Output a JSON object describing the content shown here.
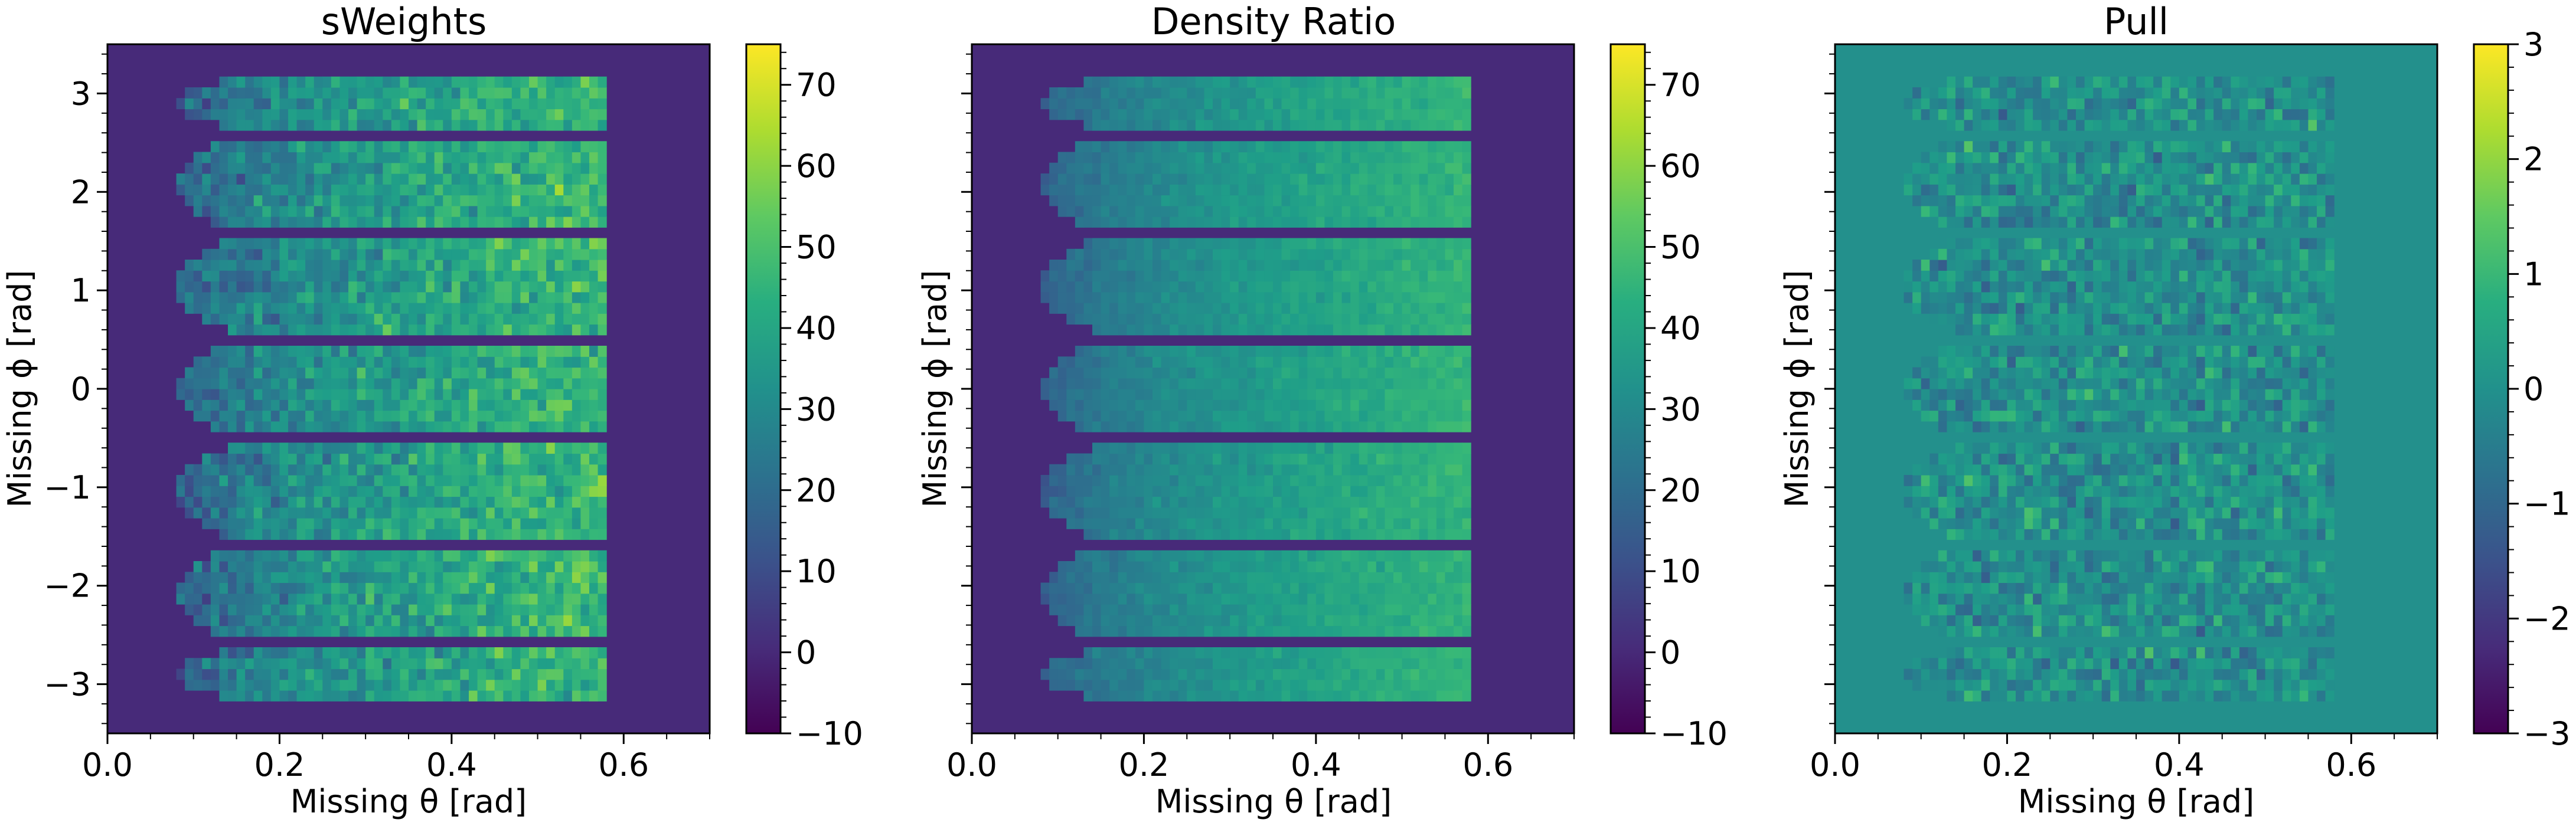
{
  "figure": {
    "panels": [
      {
        "key": "sweights",
        "title": "sWeights",
        "xlabel": "Missing θ [rad]",
        "ylabel": "Missing ϕ [rad]",
        "show_y_ticklabels": true,
        "background_value": 0
      },
      {
        "key": "density_ratio",
        "title": "Density Ratio",
        "xlabel": "Missing θ [rad]",
        "ylabel": "Missing ϕ [rad]",
        "show_y_ticklabels": false,
        "background_value": 0
      },
      {
        "key": "pull",
        "title": "Pull",
        "xlabel": "Missing θ [rad]",
        "ylabel": "Missing ϕ [rad]",
        "show_y_ticklabels": false,
        "background_value": 0
      }
    ]
  },
  "chart_data": [
    {
      "type": "heatmap",
      "title": "sWeights",
      "xlabel": "Missing θ [rad]",
      "ylabel": "Missing ϕ [rad]",
      "xlim": [
        0.0,
        0.7
      ],
      "ylim": [
        -3.5,
        3.5
      ],
      "xticks": [
        "0.0",
        "0.2",
        "0.4",
        "0.6"
      ],
      "yticks": [
        "−3",
        "−2",
        "−1",
        "0",
        "1",
        "2",
        "3"
      ],
      "colorbar": {
        "min": -10,
        "max": 75,
        "ticks": [
          "−10",
          "0",
          "10",
          "20",
          "30",
          "40",
          "50",
          "60",
          "70"
        ],
        "colormap": "viridis"
      },
      "background_value": 0,
      "band_phi_centers": [
        -2.9,
        -2.09,
        -1.05,
        0.0,
        1.05,
        2.09,
        2.9
      ],
      "band_phi_halfwidths": [
        0.24,
        0.45,
        0.45,
        0.45,
        0.45,
        0.45,
        0.24
      ],
      "theta_range": [
        0.08,
        0.58
      ],
      "value_at_low_theta": 12,
      "value_at_high_theta": 48,
      "noise_amplitude": 9
    },
    {
      "type": "heatmap",
      "title": "Density Ratio",
      "xlabel": "Missing θ [rad]",
      "ylabel": "Missing ϕ [rad]",
      "xlim": [
        0.0,
        0.7
      ],
      "ylim": [
        -3.5,
        3.5
      ],
      "xticks": [
        "0.0",
        "0.2",
        "0.4",
        "0.6"
      ],
      "yticks": [
        "−3",
        "−2",
        "−1",
        "0",
        "1",
        "2",
        "3"
      ],
      "colorbar": {
        "min": -10,
        "max": 75,
        "ticks": [
          "−10",
          "0",
          "10",
          "20",
          "30",
          "40",
          "50",
          "60",
          "70"
        ],
        "colormap": "viridis"
      },
      "background_value": 0,
      "band_phi_centers": [
        -2.9,
        -2.09,
        -1.05,
        0.0,
        1.05,
        2.09,
        2.9
      ],
      "band_phi_halfwidths": [
        0.24,
        0.45,
        0.45,
        0.45,
        0.45,
        0.45,
        0.24
      ],
      "theta_range": [
        0.08,
        0.58
      ],
      "value_at_low_theta": 12,
      "value_at_high_theta": 46,
      "noise_amplitude": 3
    },
    {
      "type": "heatmap",
      "title": "Pull",
      "xlabel": "Missing θ [rad]",
      "ylabel": "Missing ϕ [rad]",
      "xlim": [
        0.0,
        0.7
      ],
      "ylim": [
        -3.5,
        3.5
      ],
      "xticks": [
        "0.0",
        "0.2",
        "0.4",
        "0.6"
      ],
      "yticks": [
        "−3",
        "−2",
        "−1",
        "0",
        "1",
        "2",
        "3"
      ],
      "colorbar": {
        "min": -3,
        "max": 3,
        "ticks": [
          "−3",
          "−2",
          "−1",
          "0",
          "1",
          "2",
          "3"
        ],
        "colormap": "viridis"
      },
      "background_value": 0,
      "band_phi_centers": [
        -2.9,
        -2.09,
        -1.05,
        0.0,
        1.05,
        2.09,
        2.9
      ],
      "band_phi_halfwidths": [
        0.24,
        0.45,
        0.45,
        0.45,
        0.45,
        0.45,
        0.24
      ],
      "theta_range": [
        0.08,
        0.58
      ],
      "value_at_low_theta": 0,
      "value_at_high_theta": 0,
      "noise_amplitude": 0.7
    }
  ]
}
